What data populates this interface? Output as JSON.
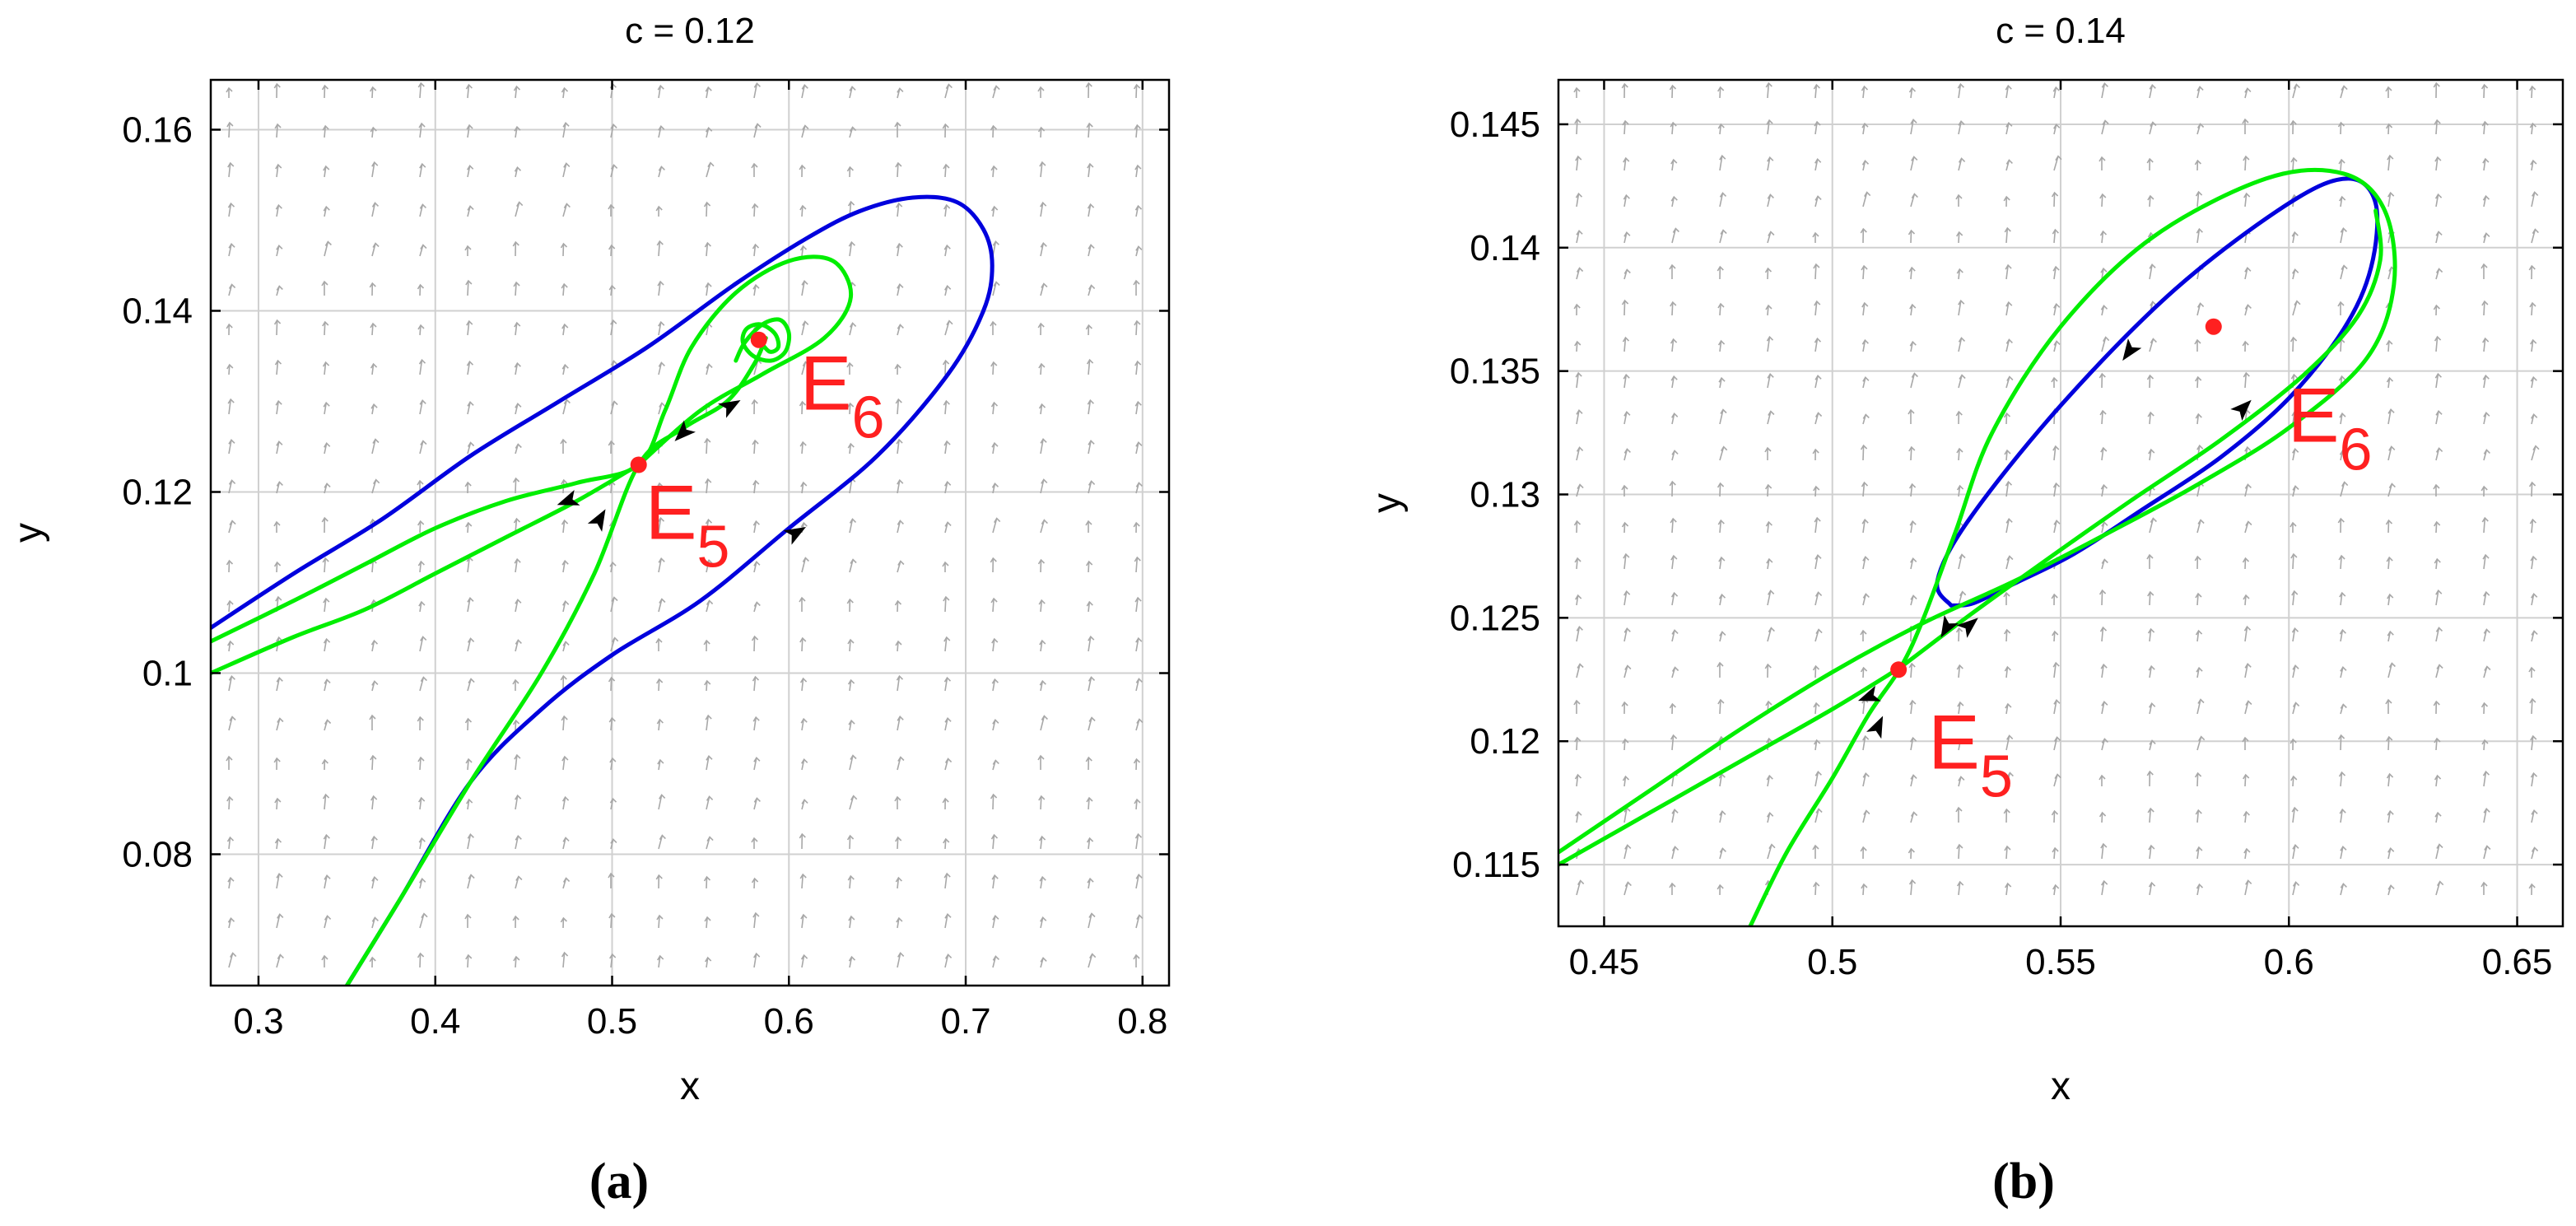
{
  "figure": {
    "captions": [
      "(a)",
      "(b)"
    ]
  },
  "colors": {
    "stable_manifold": "#00ee00",
    "separatrix": "#0000dd",
    "equilibrium": "#ff2020",
    "grid": "#d0d0d0",
    "vector_field": "#a8a8a8",
    "arrow": "#000000"
  },
  "chart_data": [
    {
      "type": "line",
      "title": "c = 0.12",
      "xlabel": "x",
      "ylabel": "y",
      "xlim": [
        0.273,
        0.815
      ],
      "ylim": [
        0.0655,
        0.1655
      ],
      "xticks": [
        0.3,
        0.4,
        0.5,
        0.6,
        0.7,
        0.8
      ],
      "xtick_labels": [
        "0.3",
        "0.4",
        "0.5",
        "0.6",
        "0.7",
        "0.8"
      ],
      "yticks": [
        0.08,
        0.1,
        0.12,
        0.14,
        0.16
      ],
      "ytick_labels": [
        "0.08",
        "0.1",
        "0.12",
        "0.14",
        "0.16"
      ],
      "grid": true,
      "vector_field": true,
      "series": [
        {
          "color": "blue",
          "x": [
            0.35,
            0.38,
            0.42,
            0.46,
            0.5,
            0.55,
            0.6,
            0.65,
            0.69,
            0.71,
            0.715,
            0.71,
            0.695,
            0.67,
            0.64,
            0.61,
            0.57,
            0.52,
            0.47,
            0.42,
            0.37,
            0.32,
            0.273
          ],
          "y": [
            0.0655,
            0.075,
            0.088,
            0.096,
            0.102,
            0.108,
            0.116,
            0.124,
            0.133,
            0.14,
            0.145,
            0.149,
            0.152,
            0.1525,
            0.151,
            0.148,
            0.143,
            0.136,
            0.13,
            0.124,
            0.117,
            0.111,
            0.105
          ]
        },
        {
          "color": "green",
          "x": [
            0.35,
            0.38,
            0.42,
            0.46,
            0.49,
            0.515,
            0.54,
            0.565,
            0.58,
            0.587
          ],
          "y": [
            0.0655,
            0.075,
            0.088,
            0.1,
            0.111,
            0.123,
            0.127,
            0.13,
            0.134,
            0.137
          ]
        },
        {
          "color": "green",
          "x": [
            0.515,
            0.55,
            0.585,
            0.62,
            0.635,
            0.625,
            0.6,
            0.57,
            0.545,
            0.53,
            0.515,
            0.48,
            0.44,
            0.4,
            0.36,
            0.32,
            0.273
          ],
          "y": [
            0.123,
            0.129,
            0.133,
            0.137,
            0.1415,
            0.1455,
            0.1455,
            0.142,
            0.136,
            0.129,
            0.123,
            0.121,
            0.119,
            0.116,
            0.112,
            0.108,
            0.1035
          ]
        },
        {
          "color": "green",
          "x": [
            0.515,
            0.48,
            0.44,
            0.4,
            0.36,
            0.32,
            0.273
          ],
          "y": [
            0.123,
            0.119,
            0.115,
            0.111,
            0.107,
            0.104,
            0.1
          ]
        },
        {
          "color": "green",
          "x": [
            0.57,
            0.575,
            0.585,
            0.595,
            0.6,
            0.598,
            0.59,
            0.58,
            0.574,
            0.576,
            0.584,
            0.592,
            0.594,
            0.589,
            0.583
          ],
          "y": [
            0.1345,
            0.1365,
            0.1385,
            0.139,
            0.1375,
            0.1355,
            0.1345,
            0.135,
            0.1365,
            0.138,
            0.1385,
            0.1375,
            0.136,
            0.1355,
            0.1368
          ]
        }
      ],
      "points": [
        {
          "label": "E5",
          "x": 0.515,
          "y": 0.123
        },
        {
          "label": "E6",
          "x": 0.583,
          "y": 0.1368
        }
      ],
      "arrows": [
        {
          "x": 0.54,
          "y": 0.1265,
          "dir": 225
        },
        {
          "x": 0.567,
          "y": 0.1295,
          "dir": 30
        },
        {
          "x": 0.493,
          "y": 0.117,
          "dir": 60
        },
        {
          "x": 0.475,
          "y": 0.119,
          "dir": 200
        },
        {
          "x": 0.604,
          "y": 0.1155,
          "dir": 30
        }
      ]
    },
    {
      "type": "line",
      "title": "c = 0.14",
      "xlabel": "x",
      "ylabel": "y",
      "xlim": [
        0.44,
        0.66
      ],
      "ylim": [
        0.1125,
        0.1468
      ],
      "xticks": [
        0.45,
        0.5,
        0.55,
        0.6,
        0.65
      ],
      "xtick_labels": [
        "0.45",
        "0.5",
        "0.55",
        "0.6",
        "0.65"
      ],
      "yticks": [
        0.115,
        0.12,
        0.125,
        0.13,
        0.135,
        0.14,
        0.145
      ],
      "ytick_labels": [
        "0.115",
        "0.12",
        "0.125",
        "0.13",
        "0.135",
        "0.14",
        "0.145"
      ],
      "grid": true,
      "vector_field": true,
      "series": [
        {
          "color": "blue",
          "x": [
            0.526,
            0.523,
            0.53,
            0.55,
            0.575,
            0.6,
            0.613,
            0.619,
            0.618,
            0.612,
            0.6,
            0.585,
            0.568,
            0.553,
            0.54,
            0.531,
            0.526
          ],
          "y": [
            0.1255,
            0.1265,
            0.129,
            0.1336,
            0.1383,
            0.1418,
            0.1428,
            0.1418,
            0.1392,
            0.1367,
            0.1339,
            0.1315,
            0.1294,
            0.1276,
            0.1264,
            0.1256,
            0.1255
          ]
        },
        {
          "color": "green",
          "x": [
            0.482,
            0.49,
            0.5,
            0.508,
            0.515,
            0.52,
            0.527,
            0.535,
            0.55,
            0.57,
            0.595,
            0.612,
            0.621,
            0.623,
            0.617,
            0.6,
            0.58,
            0.56,
            0.54,
            0.52,
            0.5,
            0.48,
            0.46,
            0.44
          ],
          "y": [
            0.1125,
            0.1155,
            0.1185,
            0.1211,
            0.123,
            0.125,
            0.1285,
            0.1325,
            0.1368,
            0.1404,
            0.1428,
            0.143,
            0.1415,
            0.1385,
            0.1355,
            0.1327,
            0.1304,
            0.1284,
            0.1265,
            0.1248,
            0.1228,
            0.1205,
            0.118,
            0.1155
          ]
        },
        {
          "color": "green",
          "x": [
            0.515,
            0.52,
            0.53,
            0.545,
            0.565,
            0.585,
            0.603,
            0.615,
            0.62,
            0.619
          ],
          "y": [
            0.123,
            0.1237,
            0.1251,
            0.1271,
            0.1297,
            0.1322,
            0.1348,
            0.1372,
            0.1395,
            0.1415
          ]
        },
        {
          "color": "green",
          "x": [
            0.515,
            0.5,
            0.48,
            0.46,
            0.44
          ],
          "y": [
            0.123,
            0.1213,
            0.1192,
            0.1171,
            0.115
          ]
        }
      ],
      "points": [
        {
          "label": "E5",
          "x": 0.5145,
          "y": 0.1229
        },
        {
          "label": "E6",
          "x": 0.5835,
          "y": 0.1368
        }
      ],
      "arrows": [
        {
          "x": 0.565,
          "y": 0.1358,
          "dir": 235
        },
        {
          "x": 0.59,
          "y": 0.1335,
          "dir": 45
        },
        {
          "x": 0.525,
          "y": 0.1246,
          "dir": 240
        },
        {
          "x": 0.53,
          "y": 0.1247,
          "dir": 40
        },
        {
          "x": 0.508,
          "y": 0.1218,
          "dir": 200
        },
        {
          "x": 0.51,
          "y": 0.1206,
          "dir": 65
        }
      ]
    }
  ]
}
